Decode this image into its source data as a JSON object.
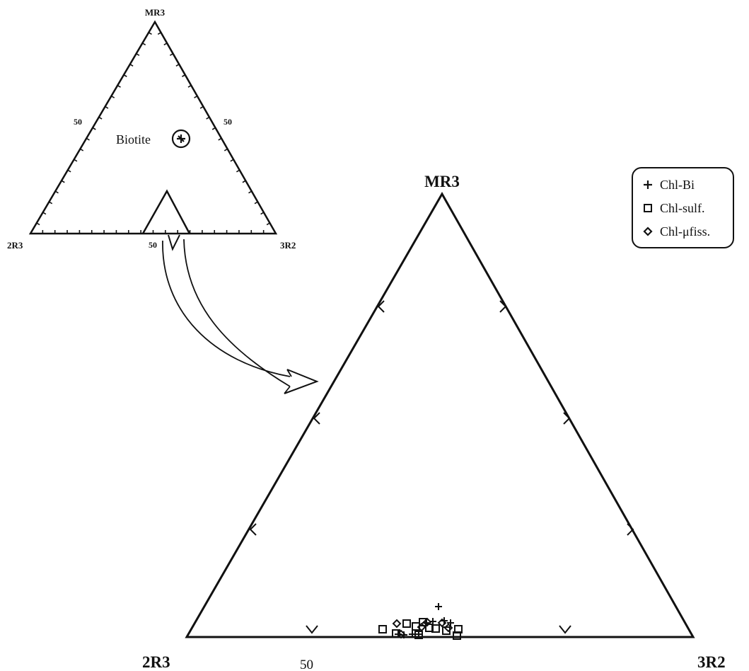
{
  "inset": {
    "vertex_top": "MR3",
    "vertex_left": "2R3",
    "vertex_right": "3R2",
    "tick_left": "50",
    "tick_right": "50",
    "tick_bottom": "50",
    "biotite_label": "Biotite"
  },
  "main": {
    "vertex_top": "MR3",
    "vertex_left": "2R3",
    "vertex_right": "3R2",
    "tick_bottom": "50"
  },
  "legend": {
    "items": [
      {
        "symbol": "plus",
        "label": "Chl-Bi"
      },
      {
        "symbol": "square",
        "label": "Chl-sulf."
      },
      {
        "symbol": "diamond",
        "label": "Chl-μfiss."
      }
    ]
  },
  "colors": {
    "ink": "#111111",
    "background": "#ffffff"
  }
}
